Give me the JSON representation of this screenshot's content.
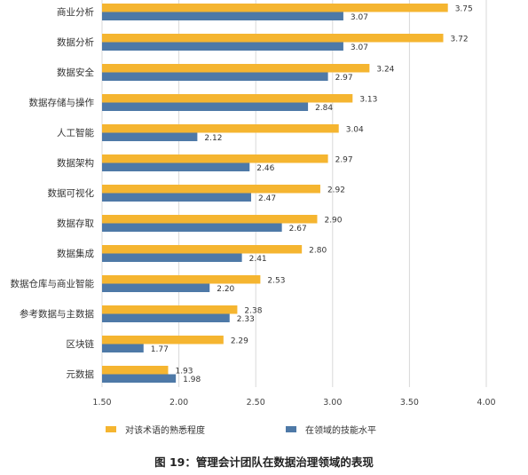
{
  "chart_data": {
    "type": "bar",
    "orientation": "horizontal",
    "categories": [
      "商业分析",
      "数据分析",
      "数据安全",
      "数据存储与操作",
      "人工智能",
      "数据架构",
      "数据可视化",
      "数据存取",
      "数据集成",
      "数据仓库与商业智能",
      "参考数据与主数据",
      "区块链",
      "元数据"
    ],
    "series": [
      {
        "name": "对该术语的熟悉程度",
        "color": "#F5B530",
        "values": [
          3.75,
          3.72,
          3.24,
          3.13,
          3.04,
          2.97,
          2.92,
          2.9,
          2.8,
          2.53,
          2.38,
          2.29,
          1.93
        ],
        "labels": [
          "3.75",
          "3.72",
          "3.24",
          "3.13",
          "3.04",
          "2.97",
          "2.92",
          "2.90",
          "2.80",
          "2.53",
          "2.38",
          "2.29",
          "1.93"
        ]
      },
      {
        "name": "在领域的技能水平",
        "color": "#4E79A7",
        "values": [
          3.07,
          3.07,
          2.97,
          2.84,
          2.12,
          2.46,
          2.47,
          2.67,
          2.41,
          2.2,
          2.33,
          1.77,
          1.98
        ],
        "labels": [
          "3.07",
          "3.07",
          "2.97",
          "2.84",
          "2.12",
          "2.46",
          "2.47",
          "2.67",
          "2.41",
          "2.20",
          "2.33",
          "1.77",
          "1.98"
        ]
      }
    ],
    "xlim": [
      1.5,
      4.0
    ],
    "xticks": [
      1.5,
      2.0,
      2.5,
      3.0,
      3.5,
      4.0
    ],
    "xtick_labels": [
      "1.50",
      "2.00",
      "2.50",
      "3.00",
      "3.50",
      "4.00"
    ],
    "grid": "vertical",
    "legend_position": "bottom",
    "caption": "图 19：管理会计团队在数据治理领域的表现"
  }
}
